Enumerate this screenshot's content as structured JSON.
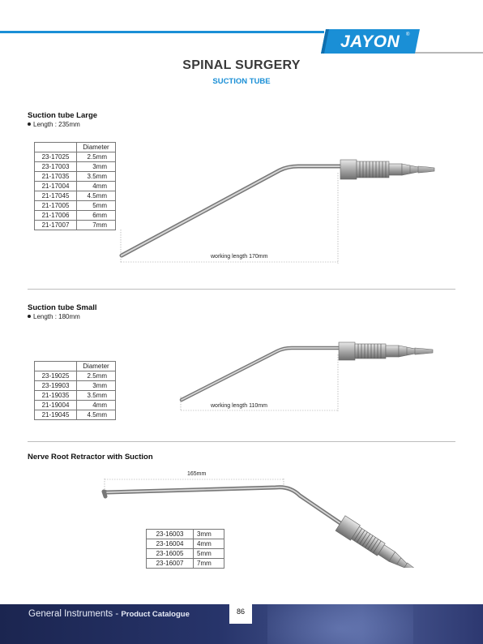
{
  "header": {
    "brand": "JAYON",
    "trademark": "®",
    "title": "SPINAL SURGERY",
    "subtitle": "SUCTION TUBE"
  },
  "sections": [
    {
      "title": "Suction tube Large",
      "bullet": "Length : 235mm",
      "table_header": "Diameter",
      "rows": [
        {
          "code": "23-17025",
          "diameter": "2.5mm"
        },
        {
          "code": "23-17003",
          "diameter": "3mm"
        },
        {
          "code": "21-17035",
          "diameter": "3.5mm"
        },
        {
          "code": "21-17004",
          "diameter": "4mm"
        },
        {
          "code": "21-17045",
          "diameter": "4.5mm"
        },
        {
          "code": "21-17005",
          "diameter": "5mm"
        },
        {
          "code": "21-17006",
          "diameter": "6mm"
        },
        {
          "code": "21-17007",
          "diameter": "7mm"
        }
      ],
      "dimension": "working length 170mm"
    },
    {
      "title": "Suction tube Small",
      "bullet": "Length : 180mm",
      "table_header": "Diameter",
      "rows": [
        {
          "code": "23-19025",
          "diameter": "2.5mm"
        },
        {
          "code": "23-19903",
          "diameter": "3mm"
        },
        {
          "code": "21-19035",
          "diameter": "3.5mm"
        },
        {
          "code": "21-19004",
          "diameter": "4mm"
        },
        {
          "code": "21-19045",
          "diameter": "4.5mm"
        }
      ],
      "dimension": "working length 110mm"
    },
    {
      "title": "Nerve Root Retractor with Suction",
      "rows": [
        {
          "code": "23-16003",
          "size": "3mm"
        },
        {
          "code": "23-16004",
          "size": "4mm"
        },
        {
          "code": "23-16005",
          "size": "5mm"
        },
        {
          "code": "23-16007",
          "size": "7mm"
        }
      ],
      "dimension": "165mm"
    }
  ],
  "footer": {
    "brand_line": "General Instruments - ",
    "catalogue": "Product Catalogue",
    "page_number": "86"
  },
  "colors": {
    "accent_blue": "#1a8fd6",
    "footer_navy": "#1b2550"
  }
}
